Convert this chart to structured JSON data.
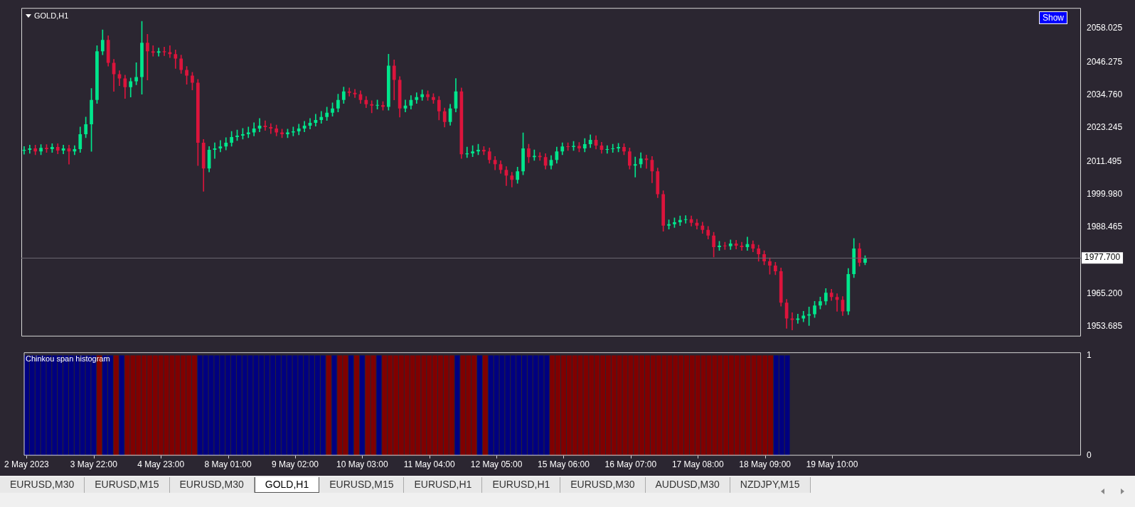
{
  "chart_data": [
    {
      "type": "candlestick",
      "title": "GOLD,H1",
      "categories": [
        null,
        null,
        null,
        null,
        null,
        null,
        null,
        null,
        null,
        null,
        null,
        null,
        null,
        null,
        null,
        null,
        null,
        null,
        null,
        null,
        null,
        null,
        null,
        null,
        null,
        null,
        null,
        null,
        null,
        null,
        null,
        null,
        null,
        null,
        null,
        null,
        null,
        null,
        null,
        null,
        null,
        null,
        null,
        null,
        null,
        null,
        null,
        null,
        null,
        null,
        null,
        null,
        null,
        null,
        null,
        null,
        null,
        null,
        null,
        null,
        null,
        null,
        null,
        null,
        null,
        null,
        null,
        null,
        null,
        null,
        null,
        null,
        null,
        null,
        null,
        null,
        null,
        null,
        null,
        null,
        null,
        null,
        null,
        null,
        null,
        null,
        null,
        null,
        null,
        null,
        null,
        null,
        null,
        null,
        null,
        null,
        null,
        null,
        null,
        null,
        null,
        null,
        null,
        null,
        null,
        null,
        null,
        null,
        null,
        null,
        null,
        null,
        null,
        null,
        null,
        null,
        null,
        null,
        null,
        null,
        null,
        null,
        null,
        null,
        null,
        null,
        null,
        null,
        null,
        null,
        null,
        null,
        null,
        null,
        null,
        null,
        null,
        null,
        null,
        null,
        null,
        null,
        null,
        null,
        null,
        null,
        null,
        null,
        null,
        null,
        null,
        null,
        null,
        null,
        null,
        null,
        null,
        null,
        null,
        null,
        null,
        null,
        null,
        null,
        null,
        null,
        null,
        null,
        null,
        null,
        null,
        null,
        null,
        null,
        null,
        null,
        null,
        null,
        null,
        null,
        null,
        null,
        null,
        null,
        null,
        null,
        null,
        null,
        null
      ],
      "ohlc": [
        [
          2015.2,
          2016.7,
          2014.0,
          2015.5
        ],
        [
          2015.5,
          2017.2,
          2014.3,
          2016
        ],
        [
          2016,
          2017.2,
          2013.8,
          2015
        ],
        [
          2015,
          2017.4,
          2013.8,
          2016.2
        ],
        [
          2016.2,
          2017.4,
          2014.6,
          2015.8
        ],
        [
          2015.8,
          2017.7,
          2014.6,
          2016.5
        ],
        [
          2016.5,
          2017.7,
          2014.1,
          2015.3
        ],
        [
          2015.3,
          2017.2,
          2014.1,
          2016
        ],
        [
          2016,
          2017.2,
          2010.5,
          2015
        ],
        [
          2015,
          2017,
          2013.8,
          2015.8
        ],
        [
          2015.8,
          2023.5,
          2014.6,
          2021
        ],
        [
          2021,
          2027,
          2019.8,
          2024.5
        ],
        [
          2024.5,
          2037,
          2015,
          2033
        ],
        [
          2033,
          2052,
          2031.8,
          2050
        ],
        [
          2050,
          2057.5,
          2048.8,
          2054
        ],
        [
          2054,
          2055.5,
          2044.8,
          2046
        ],
        [
          2046,
          2047.2,
          2036,
          2042
        ],
        [
          2042,
          2043.2,
          2038,
          2040.5
        ],
        [
          2040.5,
          2041.7,
          2033.5,
          2037.5
        ],
        [
          2037.5,
          2040.7,
          2034,
          2039.5
        ],
        [
          2039.5,
          2046,
          2038.3,
          2041
        ],
        [
          2041,
          2060.5,
          2035,
          2053
        ],
        [
          2053,
          2056,
          2040,
          2050
        ],
        [
          2050,
          2052,
          2048.3,
          2049.5
        ],
        [
          2049.5,
          2051.2,
          2048.3,
          2050
        ],
        [
          2050,
          2051.5,
          2048.5,
          2049.7
        ],
        [
          2049.7,
          2052,
          2047.8,
          2049
        ],
        [
          2049,
          2050.5,
          2044,
          2047.5
        ],
        [
          2047.5,
          2048.7,
          2042.3,
          2043.5
        ],
        [
          2043.5,
          2044.7,
          2038.5,
          2041.5
        ],
        [
          2041.5,
          2042.7,
          2036.5,
          2039
        ],
        [
          2039,
          2040.2,
          2010,
          2018
        ],
        [
          2018,
          2019.2,
          2001,
          2009
        ],
        [
          2009,
          2016.7,
          2007.8,
          2015.5
        ],
        [
          2015.5,
          2018,
          2012.5,
          2016
        ],
        [
          2016,
          2018.8,
          2014.8,
          2016.7
        ],
        [
          2016.7,
          2019.8,
          2015.5,
          2018
        ],
        [
          2018,
          2022,
          2016.8,
          2020
        ],
        [
          2020,
          2022.5,
          2018.8,
          2020.5
        ],
        [
          2020.5,
          2023,
          2019.3,
          2021
        ],
        [
          2021,
          2023.5,
          2019.8,
          2021.6
        ],
        [
          2021.6,
          2025,
          2020.4,
          2023
        ],
        [
          2023,
          2026.5,
          2021.8,
          2024
        ],
        [
          2024,
          2025.7,
          2022.3,
          2023.5
        ],
        [
          2023.5,
          2024.7,
          2021.2,
          2023
        ],
        [
          2023,
          2024.2,
          2020.4,
          2021.6
        ],
        [
          2021.6,
          2022.8,
          2019.8,
          2021
        ],
        [
          2021,
          2022.8,
          2019.8,
          2021.6
        ],
        [
          2021.6,
          2023.5,
          2020.4,
          2022
        ],
        [
          2022,
          2024.5,
          2020.8,
          2023
        ],
        [
          2023,
          2025.5,
          2021.8,
          2024
        ],
        [
          2024,
          2026.5,
          2022.8,
          2025
        ],
        [
          2025,
          2028,
          2023.8,
          2026
        ],
        [
          2026,
          2029,
          2024.8,
          2027
        ],
        [
          2027,
          2030.5,
          2025.8,
          2028.5
        ],
        [
          2028.5,
          2032,
          2027.3,
          2030
        ],
        [
          2030,
          2035,
          2028.8,
          2033
        ],
        [
          2033,
          2037.5,
          2031.8,
          2036
        ],
        [
          2036,
          2037.2,
          2034.3,
          2035.5
        ],
        [
          2035.5,
          2036.7,
          2033.8,
          2035
        ],
        [
          2035,
          2036.2,
          2031.8,
          2033
        ],
        [
          2033,
          2034.2,
          2030.3,
          2031.5
        ],
        [
          2031.5,
          2032.7,
          2028.5,
          2031
        ],
        [
          2031,
          2033,
          2029.8,
          2031.2
        ],
        [
          2031.2,
          2032.4,
          2029.4,
          2030.6
        ],
        [
          2030.6,
          2049,
          2029.4,
          2045
        ],
        [
          2045,
          2047,
          2033,
          2040
        ],
        [
          2040,
          2041.2,
          2027,
          2030
        ],
        [
          2030,
          2033,
          2028.8,
          2031
        ],
        [
          2031,
          2034.5,
          2029.8,
          2033
        ],
        [
          2033,
          2035.5,
          2031.8,
          2034
        ],
        [
          2034,
          2036.5,
          2032.8,
          2035
        ],
        [
          2035,
          2036.2,
          2032.8,
          2034
        ],
        [
          2034,
          2035.2,
          2031.8,
          2033
        ],
        [
          2033,
          2034.2,
          2026,
          2029
        ],
        [
          2029,
          2030.2,
          2023.5,
          2025.3
        ],
        [
          2025.3,
          2031.5,
          2024.1,
          2030
        ],
        [
          2030,
          2040.5,
          2028.8,
          2036
        ],
        [
          2036,
          2037.2,
          2012.5,
          2014
        ],
        [
          2014,
          2016.5,
          2012.8,
          2014.3
        ],
        [
          2014.3,
          2017,
          2013.1,
          2015
        ],
        [
          2015,
          2017.5,
          2013.8,
          2015.5
        ],
        [
          2015.5,
          2016.7,
          2013.8,
          2015
        ],
        [
          2015,
          2016.2,
          2010.8,
          2012
        ],
        [
          2012,
          2013.2,
          2008.5,
          2010.5
        ],
        [
          2010.5,
          2011.7,
          2007.3,
          2008.5
        ],
        [
          2008.5,
          2009.7,
          2003,
          2006.5
        ],
        [
          2006.5,
          2007.7,
          2002.5,
          2005
        ],
        [
          2005,
          2009.5,
          2003.8,
          2008
        ],
        [
          2008,
          2021.5,
          2006.8,
          2016
        ],
        [
          2016,
          2017.5,
          2011,
          2013
        ],
        [
          2013,
          2015.5,
          2011.8,
          2013.4
        ],
        [
          2013.4,
          2014.6,
          2011.8,
          2013
        ],
        [
          2013,
          2014.2,
          2008.8,
          2010
        ],
        [
          2010,
          2013.5,
          2008.8,
          2012
        ],
        [
          2012,
          2016.5,
          2010.8,
          2015
        ],
        [
          2015,
          2018,
          2013.8,
          2016.7
        ],
        [
          2016.7,
          2018,
          2015.3,
          2016.5
        ],
        [
          2016.5,
          2018.5,
          2015.3,
          2016.9
        ],
        [
          2016.9,
          2018.1,
          2014.8,
          2016
        ],
        [
          2016,
          2019.5,
          2014.8,
          2017.5
        ],
        [
          2017.5,
          2020.8,
          2016.3,
          2019
        ],
        [
          2019,
          2020.5,
          2015.8,
          2017
        ],
        [
          2017,
          2018.2,
          2014.3,
          2015.5
        ],
        [
          2015.5,
          2017,
          2014.3,
          2015.8
        ],
        [
          2015.8,
          2017.5,
          2014.6,
          2016
        ],
        [
          2016,
          2017.8,
          2014.8,
          2016.5
        ],
        [
          2016.5,
          2017.7,
          2013.8,
          2015
        ],
        [
          2015,
          2016.2,
          2008.8,
          2010
        ],
        [
          2010,
          2013,
          2006,
          2010.5
        ],
        [
          2010.5,
          2014.5,
          2009.3,
          2012.5
        ],
        [
          2012.5,
          2013.7,
          2009,
          2012
        ],
        [
          2012,
          2013.2,
          2004,
          2008
        ],
        [
          2008,
          2009.2,
          1998.8,
          2000
        ],
        [
          2000,
          2001.2,
          1987,
          1989
        ],
        [
          1989,
          1991,
          1987.8,
          1989.5
        ],
        [
          1989.5,
          1991.7,
          1988.3,
          1990.2
        ],
        [
          1990.2,
          1992.4,
          1989,
          1991
        ],
        [
          1991,
          1992.5,
          1989.8,
          1991.2
        ],
        [
          1991.2,
          1992.4,
          1988.8,
          1990
        ],
        [
          1990,
          1991.2,
          1987.8,
          1989
        ],
        [
          1989,
          1990.2,
          1986.3,
          1987.5
        ],
        [
          1987.5,
          1988.7,
          1984.3,
          1985.5
        ],
        [
          1985.5,
          1986.7,
          1978,
          1981.5
        ],
        [
          1981.5,
          1983.5,
          1980.3,
          1982
        ],
        [
          1982,
          1983.2,
          1980.6,
          1981.8
        ],
        [
          1981.8,
          1984,
          1980.6,
          1982.7
        ],
        [
          1982.7,
          1983.9,
          1980.8,
          1982
        ],
        [
          1982,
          1983.2,
          1980.3,
          1981.5
        ],
        [
          1981.5,
          1985,
          1980.3,
          1982.5
        ],
        [
          1982.5,
          1983.7,
          1979.8,
          1981
        ],
        [
          1981,
          1982.2,
          1976.5,
          1979
        ],
        [
          1979,
          1980.2,
          1975.3,
          1976.5
        ],
        [
          1976.5,
          1977.7,
          1972,
          1975
        ],
        [
          1975,
          1976.2,
          1971.8,
          1973
        ],
        [
          1973,
          1974.2,
          1960.8,
          1962
        ],
        [
          1962,
          1963.2,
          1953,
          1956.5
        ],
        [
          1956.5,
          1958.5,
          1952.5,
          1956
        ],
        [
          1956,
          1958,
          1954.8,
          1956.5
        ],
        [
          1956.5,
          1959,
          1955.3,
          1957.5
        ],
        [
          1957.5,
          1960.5,
          1954,
          1958
        ],
        [
          1958,
          1962.5,
          1956.8,
          1961
        ],
        [
          1961,
          1964,
          1959.8,
          1962.5
        ],
        [
          1962.5,
          1967,
          1961.3,
          1965.5
        ],
        [
          1965.5,
          1966.7,
          1962.8,
          1964
        ],
        [
          1964,
          1965.2,
          1959,
          1963
        ],
        [
          1963,
          1964.2,
          1957.5,
          1959
        ],
        [
          1959,
          1974,
          1957.8,
          1972
        ],
        [
          1972,
          1984.5,
          1970.8,
          1981
        ],
        [
          1981,
          1982.8,
          1974.8,
          1976
        ],
        [
          1976,
          1978.5,
          1975.3,
          1977.7
        ],
        null,
        null,
        null,
        null,
        null,
        null,
        null,
        null,
        null,
        null,
        null,
        null,
        null,
        null,
        null,
        null,
        null,
        null,
        null,
        null,
        null,
        null,
        null,
        null,
        null,
        null,
        null,
        null,
        null,
        null,
        null,
        null,
        null,
        null,
        null,
        null,
        null,
        null
      ],
      "colors": [
        "#00e68c",
        "#00e68c",
        "#dc143c",
        "#00e68c",
        "#dc143c",
        "#00e68c",
        "#dc143c",
        "#00e68c",
        "#dc143c",
        "#00e68c",
        "#00e68c",
        "#00e68c",
        "#00e68c",
        "#00e68c",
        "#00e68c",
        "#dc143c",
        "#dc143c",
        "#dc143c",
        "#dc143c",
        "#00e68c",
        "#00e68c",
        "#00e68c",
        "#dc143c",
        "#dc143c",
        "#00e68c",
        "#dc143c",
        "#dc143c",
        "#dc143c",
        "#dc143c",
        "#dc143c",
        "#dc143c",
        "#dc143c",
        "#dc143c",
        "#00e68c",
        "#00e68c",
        "#00e68c",
        "#00e68c",
        "#00e68c",
        "#00e68c",
        "#00e68c",
        "#00e68c",
        "#00e68c",
        "#00e68c",
        "#dc143c",
        "#dc143c",
        "#dc143c",
        "#dc143c",
        "#00e68c",
        "#00e68c",
        "#00e68c",
        "#00e68c",
        "#00e68c",
        "#00e68c",
        "#00e68c",
        "#00e68c",
        "#00e68c",
        "#00e68c",
        "#00e68c",
        "#dc143c",
        "#dc143c",
        "#dc143c",
        "#dc143c",
        "#dc143c",
        "#00e68c",
        "#dc143c",
        "#00e68c",
        "#dc143c",
        "#dc143c",
        "#00e68c",
        "#00e68c",
        "#00e68c",
        "#00e68c",
        "#dc143c",
        "#dc143c",
        "#dc143c",
        "#dc143c",
        "#00e68c",
        "#00e68c",
        "#dc143c",
        "#00e68c",
        "#00e68c",
        "#00e68c",
        "#dc143c",
        "#dc143c",
        "#dc143c",
        "#dc143c",
        "#dc143c",
        "#dc143c",
        "#00e68c",
        "#00e68c",
        "#dc143c",
        "#00e68c",
        "#dc143c",
        "#dc143c",
        "#00e68c",
        "#00e68c",
        "#00e68c",
        "#dc143c",
        "#00e68c",
        "#dc143c",
        "#00e68c",
        "#00e68c",
        "#dc143c",
        "#dc143c",
        "#00e68c",
        "#00e68c",
        "#00e68c",
        "#dc143c",
        "#dc143c",
        "#00e68c",
        "#00e68c",
        "#dc143c",
        "#dc143c",
        "#dc143c",
        "#dc143c",
        "#00e68c",
        "#00e68c",
        "#00e68c",
        "#00e68c",
        "#dc143c",
        "#dc143c",
        "#dc143c",
        "#dc143c",
        "#dc143c",
        "#00e68c",
        "#dc143c",
        "#00e68c",
        "#dc143c",
        "#dc143c",
        "#00e68c",
        "#dc143c",
        "#dc143c",
        "#dc143c",
        "#dc143c",
        "#dc143c",
        "#dc143c",
        "#dc143c",
        "#dc143c",
        "#00e68c",
        "#00e68c",
        "#00e68c",
        "#00e68c",
        "#00e68c",
        "#00e68c",
        "#dc143c",
        "#dc143c",
        "#dc143c",
        "#00e68c",
        "#00e68c",
        "#dc143c",
        "#00e68c",
        null,
        null,
        null,
        null,
        null,
        null,
        null,
        null,
        null,
        null,
        null,
        null,
        null,
        null,
        null,
        null,
        null,
        null,
        null,
        null,
        null,
        null,
        null,
        null,
        null,
        null,
        null,
        null,
        null,
        null,
        null,
        null,
        null,
        null,
        null,
        null,
        null,
        null
      ],
      "ylim": [
        1950.2,
        2065.2
      ],
      "yticks": [
        2058.025,
        2046.275,
        {
          "value": 2034.76,
          "label": "2034.760"
        },
        2023.245,
        2011.495,
        {
          "value": 1999.98,
          "label": "1999.980"
        },
        1988.465,
        {
          "value": 1965.2,
          "label": "1965.200"
        },
        1953.685
      ],
      "tick_labels": "y",
      "grid": false,
      "legend": false,
      "ref_lines": [
        {
          "axis": "y",
          "value": 1977.7,
          "label": "1977.700"
        }
      ],
      "annotations": [
        "Show",
        "EURUSD,M30",
        "EURUSD,M15",
        "EURUSD,M30",
        "GOLD,H1",
        "EURUSD,M15",
        "EURUSD,H1",
        "EURUSD,H1",
        "EURUSD,M30",
        "AUDUSD,M30",
        "NZDJPY,M15"
      ]
    },
    {
      "type": "bar",
      "title": "Chinkou span histogram",
      "categories": [
        "2 May 2023",
        null,
        null,
        null,
        null,
        null,
        null,
        null,
        null,
        null,
        null,
        null,
        "3 May 22:00",
        null,
        null,
        null,
        null,
        null,
        null,
        null,
        null,
        null,
        null,
        null,
        "4 May 23:00",
        null,
        null,
        null,
        null,
        null,
        null,
        null,
        null,
        null,
        null,
        null,
        "8 May 01:00",
        null,
        null,
        null,
        null,
        null,
        null,
        null,
        null,
        null,
        null,
        null,
        "9 May 02:00",
        null,
        null,
        null,
        null,
        null,
        null,
        null,
        null,
        null,
        null,
        null,
        "10 May 03:00",
        null,
        null,
        null,
        null,
        null,
        null,
        null,
        null,
        null,
        null,
        null,
        "11 May 04:00",
        null,
        null,
        null,
        null,
        null,
        null,
        null,
        null,
        null,
        null,
        null,
        "12 May 05:00",
        null,
        null,
        null,
        null,
        null,
        null,
        null,
        null,
        null,
        null,
        null,
        "15 May 06:00",
        null,
        null,
        null,
        null,
        null,
        null,
        null,
        null,
        null,
        null,
        null,
        "16 May 07:00",
        null,
        null,
        null,
        null,
        null,
        null,
        null,
        null,
        null,
        null,
        null,
        "17 May 08:00",
        null,
        null,
        null,
        null,
        null,
        null,
        null,
        null,
        null,
        null,
        null,
        "18 May 09:00",
        null,
        null,
        null,
        null,
        null,
        null,
        null,
        null,
        null,
        null,
        null,
        "19 May 10:00",
        null,
        null,
        null,
        null,
        null,
        null,
        null,
        null,
        null,
        null,
        null,
        null,
        null,
        null,
        null,
        null,
        null,
        null,
        null,
        null,
        null,
        null,
        null,
        null,
        null,
        null,
        null,
        null,
        null,
        null,
        null,
        null,
        null,
        null,
        null,
        null,
        null,
        null,
        null,
        null,
        null,
        null,
        null,
        null
      ],
      "values": [
        1,
        1,
        1,
        1,
        1,
        1,
        1,
        1,
        1,
        1,
        1,
        1,
        1,
        1,
        1,
        1,
        1,
        1,
        1,
        1,
        1,
        1,
        1,
        1,
        1,
        1,
        1,
        1,
        1,
        1,
        1,
        1,
        1,
        1,
        1,
        1,
        1,
        1,
        1,
        1,
        1,
        1,
        1,
        1,
        1,
        1,
        1,
        1,
        1,
        1,
        1,
        1,
        1,
        1,
        1,
        1,
        1,
        1,
        1,
        1,
        1,
        1,
        1,
        1,
        1,
        1,
        1,
        1,
        1,
        1,
        1,
        1,
        1,
        1,
        1,
        1,
        1,
        1,
        1,
        1,
        1,
        1,
        1,
        1,
        1,
        1,
        1,
        1,
        1,
        1,
        1,
        1,
        1,
        1,
        1,
        1,
        1,
        1,
        1,
        1,
        1,
        1,
        1,
        1,
        1,
        1,
        1,
        1,
        1,
        1,
        1,
        1,
        1,
        1,
        1,
        1,
        1,
        1,
        1,
        1,
        1,
        1,
        1,
        1,
        1,
        1,
        1,
        1,
        1,
        1,
        1,
        1,
        1,
        1,
        1,
        1,
        1,
        null,
        null,
        null,
        null,
        null,
        null,
        null,
        null,
        null,
        null,
        null,
        null,
        null,
        null,
        null,
        null,
        null,
        null,
        null,
        null,
        null,
        null,
        null,
        null,
        null,
        null,
        null,
        null,
        null,
        null,
        null,
        null,
        null,
        null,
        null,
        null,
        null,
        null,
        null,
        null,
        null,
        null,
        null,
        null,
        null,
        null,
        null,
        null,
        null,
        null,
        null,
        null
      ],
      "colors": [
        "#000080",
        "#000080",
        "#000080",
        "#000080",
        "#000080",
        "#000080",
        "#000080",
        "#000080",
        "#000080",
        "#000080",
        "#000080",
        "#000080",
        "#000080",
        "#800000",
        "#000080",
        "#000080",
        "#800000",
        "#000080",
        "#800000",
        "#800000",
        "#800000",
        "#800000",
        "#800000",
        "#800000",
        "#800000",
        "#800000",
        "#800000",
        "#800000",
        "#800000",
        "#800000",
        "#800000",
        "#000080",
        "#000080",
        "#000080",
        "#000080",
        "#000080",
        "#000080",
        "#000080",
        "#000080",
        "#000080",
        "#000080",
        "#000080",
        "#000080",
        "#000080",
        "#000080",
        "#000080",
        "#000080",
        "#000080",
        "#000080",
        "#000080",
        "#000080",
        "#000080",
        "#000080",
        "#000080",
        "#800000",
        "#000080",
        "#800000",
        "#800000",
        "#000080",
        "#800000",
        "#000080",
        "#800000",
        "#800000",
        "#000080",
        "#800000",
        "#800000",
        "#800000",
        "#800000",
        "#800000",
        "#800000",
        "#800000",
        "#800000",
        "#800000",
        "#800000",
        "#800000",
        "#800000",
        "#800000",
        "#000080",
        "#800000",
        "#800000",
        "#800000",
        "#000080",
        "#800000",
        "#000080",
        "#000080",
        "#000080",
        "#000080",
        "#000080",
        "#000080",
        "#000080",
        "#000080",
        "#000080",
        "#000080",
        "#000080",
        "#800000",
        "#800000",
        "#800000",
        "#800000",
        "#800000",
        "#800000",
        "#800000",
        "#800000",
        "#800000",
        "#800000",
        "#800000",
        "#800000",
        "#800000",
        "#800000",
        "#800000",
        "#800000",
        "#800000",
        "#800000",
        "#800000",
        "#800000",
        "#800000",
        "#800000",
        "#800000",
        "#800000",
        "#800000",
        "#800000",
        "#800000",
        "#800000",
        "#800000",
        "#800000",
        "#800000",
        "#800000",
        "#800000",
        "#800000",
        "#800000",
        "#800000",
        "#800000",
        "#800000",
        "#800000",
        "#800000",
        "#000080",
        "#000080",
        "#000080",
        "#000080",
        "#000080",
        null,
        null,
        null,
        null,
        null,
        null,
        null,
        null,
        null,
        null,
        null,
        null,
        null,
        null,
        null,
        null,
        null,
        null,
        null,
        null,
        null,
        null,
        null,
        null,
        null,
        null,
        null,
        null,
        null,
        null,
        null,
        null,
        null,
        null,
        null,
        null,
        null,
        null,
        null,
        null,
        null,
        null,
        null,
        null,
        null,
        null,
        null,
        null,
        null,
        null
      ],
      "ylim": [
        0,
        1.03
      ],
      "yticks": [
        0,
        1
      ],
      "grid": false,
      "legend": false
    }
  ]
}
